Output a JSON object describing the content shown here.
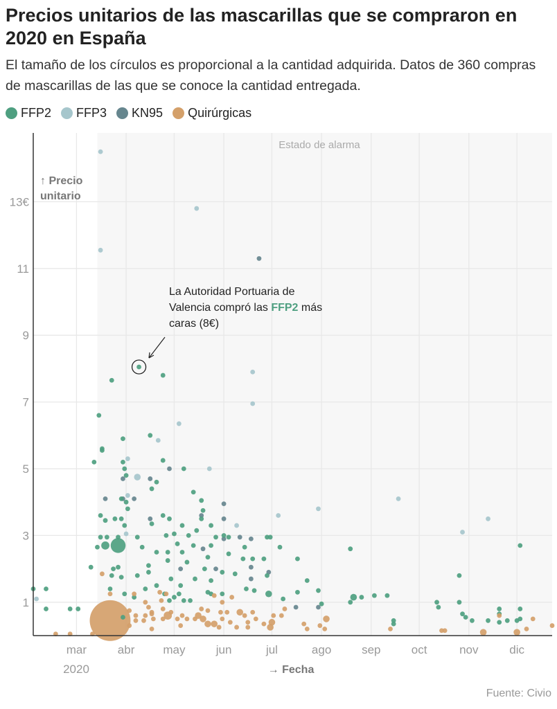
{
  "title": "Precios unitarios de las mascarillas que se compraron en 2020 en España",
  "subtitle": "El tamaño de los círculos es proporcional a la cantidad adquirida. Datos de 360 compras de mascarillas de las que se conoce la cantidad entregada.",
  "source": "Fuente: Civio",
  "chart_data": {
    "type": "scatter",
    "title": "Precios unitarios de las mascarillas que se compraron en 2020 en España",
    "xlabel": "→ Fecha",
    "ylabel_line1": "↑ Precio",
    "ylabel_line2": "unitario",
    "x_unit": "day of year 2020 (0 = 1 Jan)",
    "xlim": [
      33,
      357
    ],
    "ylim": [
      0,
      15
    ],
    "grid": true,
    "y_ticks": [
      {
        "v": 13,
        "label": "13€"
      },
      {
        "v": 11,
        "label": "11"
      },
      {
        "v": 9,
        "label": "9"
      },
      {
        "v": 7,
        "label": "7"
      },
      {
        "v": 5,
        "label": "5"
      },
      {
        "v": 3,
        "label": "3"
      },
      {
        "v": 1,
        "label": "1"
      }
    ],
    "x_ticks": [
      {
        "v": 60,
        "label": "mar"
      },
      {
        "v": 91,
        "label": "abr"
      },
      {
        "v": 121,
        "label": "may"
      },
      {
        "v": 152,
        "label": "jun"
      },
      {
        "v": 182,
        "label": "jul"
      },
      {
        "v": 213,
        "label": "ago"
      },
      {
        "v": 244,
        "label": "sep"
      },
      {
        "v": 274,
        "label": "oct"
      },
      {
        "v": 305,
        "label": "nov"
      },
      {
        "v": 335,
        "label": "dic"
      }
    ],
    "year_label": "2020",
    "shaded_region": {
      "label": "Estado de alarma",
      "from": 73,
      "to": 357
    },
    "legend_position": "top-left",
    "series": [
      {
        "name": "FFP2",
        "color": "#4e9f80"
      },
      {
        "name": "FFP3",
        "color": "#a6c6cc"
      },
      {
        "name": "KN95",
        "color": "#66868e"
      },
      {
        "name": "Quirúrgicas",
        "color": "#d4a06a"
      }
    ],
    "annotation": {
      "lines": [
        "La Autoridad Portuaria de",
        "Valencia compró las ",
        " más",
        "caras (8€)"
      ],
      "highlight": "FFP2",
      "point": [
        99,
        8.05
      ]
    },
    "points_format": "[day, price_eur, series_index, relative_quantity]",
    "points": [
      [
        75,
        14.5,
        1,
        1
      ],
      [
        75,
        11.55,
        1,
        1
      ],
      [
        135,
        12.8,
        1,
        1
      ],
      [
        170,
        7.9,
        1,
        1
      ],
      [
        170,
        6.95,
        1,
        1
      ],
      [
        124,
        6.35,
        1,
        1
      ],
      [
        111,
        5.85,
        1,
        1
      ],
      [
        92,
        5.3,
        1,
        1
      ],
      [
        98,
        4.75,
        1,
        2
      ],
      [
        143,
        5.0,
        1,
        1
      ],
      [
        186,
        3.6,
        1,
        1
      ],
      [
        211,
        3.8,
        1,
        1
      ],
      [
        261,
        4.1,
        1,
        1
      ],
      [
        301,
        3.1,
        1,
        1
      ],
      [
        317,
        3.5,
        1,
        1
      ],
      [
        35,
        1.1,
        1,
        1
      ],
      [
        160,
        3.3,
        1,
        1
      ],
      [
        92,
        4.2,
        1,
        1
      ],
      [
        91,
        3.05,
        1,
        1
      ],
      [
        174,
        11.3,
        2,
        1
      ],
      [
        89,
        4.1,
        2,
        1
      ],
      [
        78,
        4.1,
        2,
        1
      ],
      [
        96,
        4.1,
        2,
        1
      ],
      [
        106,
        3.5,
        2,
        1
      ],
      [
        118,
        5.0,
        2,
        1
      ],
      [
        106,
        4.7,
        2,
        1
      ],
      [
        152,
        3.95,
        2,
        1
      ],
      [
        152,
        3.5,
        2,
        1
      ],
      [
        138,
        3.6,
        2,
        1
      ],
      [
        162,
        2.95,
        2,
        1
      ],
      [
        169,
        2.9,
        2,
        1
      ],
      [
        152,
        2.9,
        2,
        1
      ],
      [
        169,
        2.05,
        2,
        1
      ],
      [
        169,
        1.7,
        2,
        1
      ],
      [
        180,
        1.9,
        2,
        1
      ],
      [
        125,
        2.0,
        2,
        1
      ],
      [
        139,
        2.6,
        2,
        1
      ],
      [
        197,
        0.85,
        2,
        1
      ],
      [
        211,
        0.85,
        2,
        1
      ],
      [
        89,
        4.7,
        2,
        1
      ],
      [
        147,
        2.0,
        2,
        1
      ],
      [
        99,
        8.05,
        0,
        1
      ],
      [
        82,
        7.65,
        0,
        1
      ],
      [
        114,
        7.8,
        0,
        1
      ],
      [
        74,
        6.6,
        0,
        1
      ],
      [
        76,
        5.6,
        0,
        1
      ],
      [
        76,
        5.55,
        0,
        1
      ],
      [
        71,
        5.2,
        0,
        1
      ],
      [
        89,
        5.9,
        0,
        1
      ],
      [
        106,
        6.0,
        0,
        1
      ],
      [
        114,
        5.25,
        0,
        1
      ],
      [
        89,
        5.2,
        0,
        1
      ],
      [
        90,
        5.0,
        0,
        1
      ],
      [
        91,
        4.8,
        0,
        1
      ],
      [
        127,
        5.0,
        0,
        1
      ],
      [
        107,
        4.4,
        0,
        1
      ],
      [
        110,
        4.6,
        0,
        1
      ],
      [
        133,
        4.3,
        0,
        1
      ],
      [
        138,
        4.05,
        0,
        1
      ],
      [
        88,
        4.1,
        0,
        1
      ],
      [
        91,
        4.0,
        0,
        1
      ],
      [
        75,
        3.6,
        0,
        1
      ],
      [
        78,
        3.45,
        0,
        1
      ],
      [
        84,
        3.5,
        0,
        1
      ],
      [
        88,
        3.5,
        0,
        1
      ],
      [
        114,
        3.6,
        0,
        1
      ],
      [
        118,
        3.5,
        0,
        1
      ],
      [
        92,
        3.8,
        0,
        1
      ],
      [
        126,
        3.3,
        0,
        1
      ],
      [
        90,
        3.3,
        0,
        1
      ],
      [
        107,
        3.35,
        0,
        1
      ],
      [
        138,
        3.5,
        0,
        1
      ],
      [
        139,
        3.75,
        0,
        1
      ],
      [
        144,
        3.3,
        0,
        1
      ],
      [
        75,
        2.95,
        0,
        1
      ],
      [
        79,
        2.95,
        0,
        1
      ],
      [
        86,
        2.95,
        0,
        1
      ],
      [
        98,
        2.95,
        0,
        1
      ],
      [
        116,
        3.0,
        0,
        1
      ],
      [
        121,
        3.05,
        0,
        1
      ],
      [
        130,
        3.0,
        0,
        1
      ],
      [
        135,
        3.15,
        0,
        1
      ],
      [
        147,
        2.95,
        0,
        1
      ],
      [
        152,
        3.0,
        0,
        1
      ],
      [
        155,
        2.95,
        0,
        1
      ],
      [
        179,
        2.95,
        0,
        1
      ],
      [
        181,
        2.95,
        0,
        1
      ],
      [
        78,
        2.7,
        0,
        3
      ],
      [
        86,
        2.7,
        0,
        10
      ],
      [
        73,
        2.65,
        0,
        1
      ],
      [
        101,
        2.65,
        0,
        1
      ],
      [
        123,
        2.75,
        0,
        1
      ],
      [
        133,
        2.7,
        0,
        1
      ],
      [
        144,
        2.7,
        0,
        1
      ],
      [
        110,
        2.5,
        0,
        1
      ],
      [
        117,
        2.5,
        0,
        1
      ],
      [
        126,
        2.5,
        0,
        1
      ],
      [
        165,
        2.65,
        0,
        1
      ],
      [
        187,
        2.65,
        0,
        1
      ],
      [
        231,
        2.6,
        0,
        1
      ],
      [
        69,
        2.05,
        0,
        1
      ],
      [
        83,
        2.0,
        0,
        1
      ],
      [
        86,
        2.05,
        0,
        1
      ],
      [
        105,
        2.1,
        0,
        1
      ],
      [
        105,
        1.9,
        0,
        1
      ],
      [
        142,
        2.35,
        0,
        1
      ],
      [
        155,
        2.45,
        0,
        1
      ],
      [
        164,
        2.3,
        0,
        1
      ],
      [
        177,
        2.3,
        0,
        1
      ],
      [
        198,
        2.3,
        0,
        1
      ],
      [
        170,
        2.3,
        0,
        1
      ],
      [
        117,
        2.25,
        0,
        1
      ],
      [
        129,
        2.2,
        0,
        1
      ],
      [
        140,
        2.0,
        0,
        1
      ],
      [
        151,
        1.9,
        0,
        1
      ],
      [
        159,
        1.85,
        0,
        1
      ],
      [
        82,
        1.8,
        0,
        1
      ],
      [
        88,
        1.75,
        0,
        1
      ],
      [
        98,
        1.8,
        0,
        1
      ],
      [
        119,
        1.7,
        0,
        1
      ],
      [
        134,
        1.7,
        0,
        1
      ],
      [
        144,
        1.65,
        0,
        1
      ],
      [
        179,
        1.8,
        0,
        1
      ],
      [
        204,
        1.65,
        0,
        1
      ],
      [
        299,
        1.8,
        0,
        1
      ],
      [
        81,
        1.4,
        0,
        1
      ],
      [
        90,
        1.25,
        0,
        1
      ],
      [
        103,
        1.4,
        0,
        1
      ],
      [
        115,
        1.25,
        0,
        1
      ],
      [
        124,
        1.25,
        0,
        1
      ],
      [
        142,
        1.3,
        0,
        1
      ],
      [
        166,
        1.4,
        0,
        1
      ],
      [
        171,
        1.35,
        0,
        1
      ],
      [
        180,
        1.25,
        0,
        2
      ],
      [
        189,
        1.1,
        0,
        1
      ],
      [
        198,
        1.3,
        0,
        1
      ],
      [
        211,
        1.35,
        0,
        1
      ],
      [
        233,
        1.15,
        0,
        2
      ],
      [
        238,
        1.15,
        0,
        1
      ],
      [
        246,
        1.2,
        0,
        1
      ],
      [
        254,
        1.2,
        0,
        1
      ],
      [
        231,
        1.0,
        0,
        1
      ],
      [
        285,
        1.0,
        0,
        1
      ],
      [
        286,
        0.85,
        0,
        1
      ],
      [
        299,
        1.0,
        0,
        1
      ],
      [
        213,
        0.95,
        0,
        1
      ],
      [
        258,
        0.45,
        0,
        1
      ],
      [
        258,
        0.35,
        0,
        1
      ],
      [
        301,
        0.65,
        0,
        1
      ],
      [
        303,
        0.55,
        0,
        1
      ],
      [
        307,
        0.45,
        0,
        1
      ],
      [
        317,
        0.45,
        0,
        1
      ],
      [
        324,
        0.8,
        0,
        1
      ],
      [
        324,
        0.65,
        0,
        1
      ],
      [
        324,
        0.4,
        0,
        1
      ],
      [
        329,
        0.45,
        0,
        1
      ],
      [
        335,
        0.45,
        0,
        1
      ],
      [
        337,
        0.5,
        0,
        1
      ],
      [
        337,
        0.8,
        0,
        1
      ],
      [
        337,
        2.7,
        0,
        1
      ],
      [
        33,
        1.4,
        0,
        1
      ],
      [
        41,
        1.4,
        0,
        1
      ],
      [
        41,
        0.8,
        0,
        1
      ],
      [
        56,
        0.8,
        0,
        1
      ],
      [
        61,
        0.8,
        0,
        1
      ],
      [
        89,
        0.55,
        0,
        1
      ],
      [
        118,
        1.05,
        0,
        1
      ],
      [
        127,
        1.05,
        0,
        1
      ],
      [
        131,
        1.05,
        0,
        1
      ],
      [
        144,
        1.25,
        0,
        1
      ],
      [
        151,
        1.25,
        0,
        1
      ],
      [
        125,
        1.5,
        0,
        1
      ],
      [
        121,
        1.15,
        0,
        1
      ],
      [
        110,
        1.5,
        0,
        1
      ],
      [
        96,
        1.15,
        0,
        1
      ],
      [
        81,
        0.45,
        3,
        75
      ],
      [
        47,
        0.05,
        3,
        1
      ],
      [
        56,
        0.05,
        3,
        1
      ],
      [
        70,
        0.05,
        3,
        1
      ],
      [
        76,
        1.85,
        3,
        1
      ],
      [
        81,
        1.25,
        3,
        1
      ],
      [
        96,
        1.25,
        3,
        1
      ],
      [
        93,
        0.75,
        3,
        1
      ],
      [
        97,
        0.6,
        3,
        1
      ],
      [
        97,
        0.45,
        3,
        1
      ],
      [
        93,
        0.3,
        3,
        1
      ],
      [
        103,
        1.0,
        3,
        1
      ],
      [
        105,
        0.85,
        3,
        1
      ],
      [
        103,
        0.6,
        3,
        1
      ],
      [
        107,
        0.65,
        3,
        1
      ],
      [
        102,
        0.45,
        3,
        1
      ],
      [
        108,
        0.5,
        3,
        1
      ],
      [
        107,
        0.2,
        3,
        1
      ],
      [
        107,
        0.7,
        3,
        1
      ],
      [
        113,
        1.05,
        3,
        1
      ],
      [
        114,
        0.8,
        3,
        1
      ],
      [
        117,
        0.6,
        3,
        3
      ],
      [
        119,
        0.7,
        3,
        1
      ],
      [
        114,
        0.5,
        3,
        1
      ],
      [
        123,
        0.5,
        3,
        1
      ],
      [
        125,
        0.3,
        3,
        1
      ],
      [
        126,
        0.6,
        3,
        1
      ],
      [
        129,
        0.5,
        3,
        1
      ],
      [
        134,
        0.5,
        3,
        1
      ],
      [
        139,
        0.5,
        3,
        2
      ],
      [
        136,
        0.6,
        3,
        2
      ],
      [
        142,
        0.35,
        3,
        2
      ],
      [
        146,
        0.35,
        3,
        2
      ],
      [
        149,
        0.25,
        3,
        1
      ],
      [
        150,
        0.7,
        3,
        1
      ],
      [
        151,
        0.5,
        3,
        1
      ],
      [
        154,
        0.7,
        3,
        1
      ],
      [
        162,
        0.7,
        3,
        2
      ],
      [
        156,
        0.4,
        3,
        1
      ],
      [
        160,
        0.25,
        3,
        1
      ],
      [
        165,
        0.6,
        3,
        1
      ],
      [
        167,
        0.4,
        3,
        1
      ],
      [
        167,
        0.25,
        3,
        1
      ],
      [
        170,
        0.7,
        3,
        1
      ],
      [
        172,
        0.5,
        3,
        1
      ],
      [
        177,
        0.35,
        3,
        1
      ],
      [
        181,
        0.25,
        3,
        2
      ],
      [
        182,
        0.4,
        3,
        2
      ],
      [
        183,
        0.6,
        3,
        1
      ],
      [
        188,
        0.6,
        3,
        1
      ],
      [
        190,
        0.8,
        3,
        1
      ],
      [
        202,
        0.35,
        3,
        1
      ],
      [
        204,
        0.2,
        3,
        1
      ],
      [
        212,
        0.3,
        3,
        1
      ],
      [
        215,
        0.2,
        3,
        1
      ],
      [
        216,
        0.5,
        3,
        2
      ],
      [
        256,
        0.2,
        3,
        1
      ],
      [
        288,
        0.15,
        3,
        1
      ],
      [
        290,
        0.15,
        3,
        1
      ],
      [
        314,
        0.1,
        3,
        2
      ],
      [
        335,
        0.1,
        3,
        2
      ],
      [
        341,
        0.2,
        3,
        1
      ],
      [
        345,
        0.5,
        3,
        1
      ],
      [
        357,
        0.3,
        3,
        1
      ],
      [
        324,
        0.6,
        3,
        1
      ],
      [
        151,
        1.0,
        3,
        1
      ],
      [
        146,
        1.2,
        3,
        1
      ],
      [
        112,
        1.3,
        3,
        1
      ],
      [
        116,
        1.25,
        3,
        1
      ],
      [
        157,
        1.15,
        3,
        1
      ],
      [
        142,
        0.75,
        3,
        1
      ],
      [
        138,
        0.8,
        3,
        1
      ]
    ]
  }
}
